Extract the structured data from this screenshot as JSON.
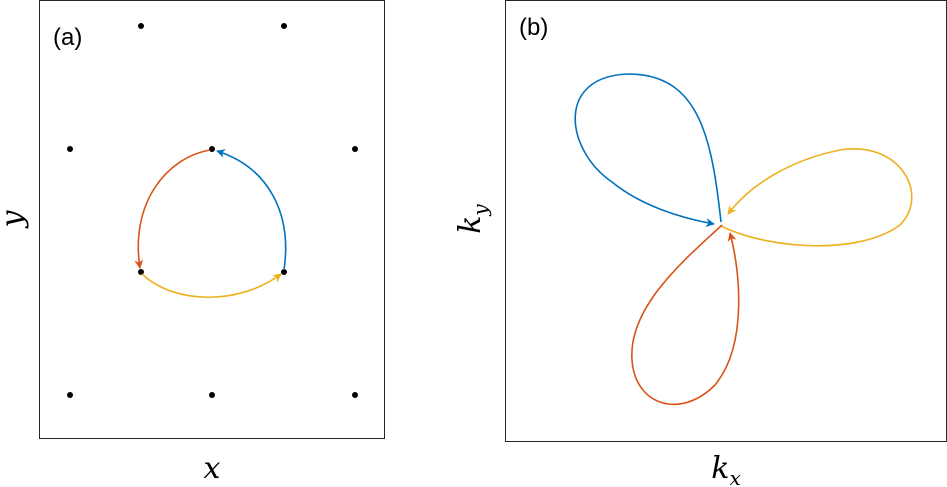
{
  "panel_a": {
    "label": "(a)",
    "xlabel": "x",
    "ylabel": "y"
  },
  "panel_b": {
    "label": "(b)",
    "xlabel": "k",
    "xlabel_sub": "x",
    "ylabel": "k",
    "ylabel_sub": "y"
  },
  "colors": {
    "blue": "#0072BD",
    "orange": "#D95319",
    "yellow": "#EDB120",
    "frame": "#262626",
    "dot": "#000000"
  }
}
